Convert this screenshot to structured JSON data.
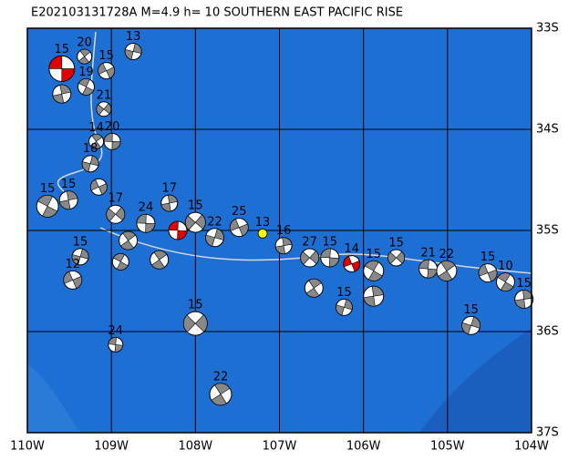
{
  "map": {
    "title": "E202103131728A M=4.9 h= 10 SOUTHERN EAST PACIFIC RISE",
    "xlim": [
      -110,
      -104
    ],
    "ylim": [
      -37,
      -33
    ],
    "xticks": [
      {
        "value": -110,
        "label": "110W"
      },
      {
        "value": -109,
        "label": "109W"
      },
      {
        "value": -108,
        "label": "108W"
      },
      {
        "value": -107,
        "label": "107W"
      },
      {
        "value": -106,
        "label": "106W"
      },
      {
        "value": -105,
        "label": "105W"
      },
      {
        "value": -104,
        "label": "104W"
      }
    ],
    "yticks": [
      {
        "value": -33,
        "label": "33S"
      },
      {
        "value": -34,
        "label": "34S"
      },
      {
        "value": -35,
        "label": "35S"
      },
      {
        "value": -36,
        "label": "36S"
      },
      {
        "value": -37,
        "label": "37S"
      }
    ],
    "events": [
      {
        "lon": -109.59,
        "lat": -33.4,
        "label": "15",
        "size": 14,
        "color": "#e00000"
      },
      {
        "lon": -109.32,
        "lat": -33.28,
        "label": "20",
        "size": 8,
        "color": "#888888"
      },
      {
        "lon": -108.74,
        "lat": -33.23,
        "label": "13",
        "size": 9,
        "color": "#888888"
      },
      {
        "lon": -109.06,
        "lat": -33.42,
        "label": "15",
        "size": 9,
        "color": "#888888"
      },
      {
        "lon": -109.3,
        "lat": -33.58,
        "label": "19",
        "size": 9,
        "color": "#888888"
      },
      {
        "lon": -109.59,
        "lat": -33.65,
        "label": null,
        "size": 10,
        "color": "#888888"
      },
      {
        "lon": -109.09,
        "lat": -33.8,
        "label": "21",
        "size": 8,
        "color": "#888888"
      },
      {
        "lon": -108.99,
        "lat": -34.12,
        "label": "20",
        "size": 9,
        "color": "#888888"
      },
      {
        "lon": -109.18,
        "lat": -34.12,
        "label": "14",
        "size": 8,
        "color": "#888888"
      },
      {
        "lon": -109.25,
        "lat": -34.34,
        "label": "18",
        "size": 9,
        "color": "#888888"
      },
      {
        "lon": -109.15,
        "lat": -34.57,
        "label": null,
        "size": 9,
        "color": "#888888"
      },
      {
        "lon": -109.76,
        "lat": -34.76,
        "label": "15",
        "size": 12,
        "color": "#888888"
      },
      {
        "lon": -109.51,
        "lat": -34.7,
        "label": "15",
        "size": 10,
        "color": "#888888"
      },
      {
        "lon": -108.95,
        "lat": -34.84,
        "label": "17",
        "size": 10,
        "color": "#888888"
      },
      {
        "lon": -108.59,
        "lat": -34.93,
        "label": "24",
        "size": 10,
        "color": "#888888"
      },
      {
        "lon": -108.8,
        "lat": -35.1,
        "label": null,
        "size": 10,
        "color": "#888888"
      },
      {
        "lon": -109.37,
        "lat": -35.26,
        "label": "15",
        "size": 9,
        "color": "#888888"
      },
      {
        "lon": -109.46,
        "lat": -35.49,
        "label": "12",
        "size": 10,
        "color": "#888888"
      },
      {
        "lon": -108.89,
        "lat": -35.31,
        "label": null,
        "size": 9,
        "color": "#888888"
      },
      {
        "lon": -108.31,
        "lat": -34.73,
        "label": "17",
        "size": 9,
        "color": "#888888"
      },
      {
        "lon": -108.0,
        "lat": -34.92,
        "label": "15",
        "size": 11,
        "color": "#888888"
      },
      {
        "lon": -108.21,
        "lat": -35.0,
        "label": null,
        "size": 10,
        "color": "#e00000"
      },
      {
        "lon": -108.43,
        "lat": -35.29,
        "label": null,
        "size": 10,
        "color": "#888888"
      },
      {
        "lon": -107.77,
        "lat": -35.07,
        "label": "22",
        "size": 10,
        "color": "#888888"
      },
      {
        "lon": -107.48,
        "lat": -34.97,
        "label": "25",
        "size": 10,
        "color": "#888888"
      },
      {
        "lon": -107.2,
        "lat": -35.03,
        "label": "13",
        "size": 5,
        "color": "#ffff00"
      },
      {
        "lon": -106.95,
        "lat": -35.15,
        "label": "16",
        "size": 9,
        "color": "#888888"
      },
      {
        "lon": -106.64,
        "lat": -35.27,
        "label": "27",
        "size": 10,
        "color": "#888888"
      },
      {
        "lon": -106.4,
        "lat": -35.27,
        "label": "15",
        "size": 10,
        "color": "#888888"
      },
      {
        "lon": -106.59,
        "lat": -35.57,
        "label": null,
        "size": 10,
        "color": "#888888"
      },
      {
        "lon": -106.23,
        "lat": -35.76,
        "label": "15",
        "size": 9,
        "color": "#888888"
      },
      {
        "lon": -106.14,
        "lat": -35.33,
        "label": "14",
        "size": 9,
        "color": "#e00000"
      },
      {
        "lon": -105.88,
        "lat": -35.4,
        "label": "15",
        "size": 11,
        "color": "#888888"
      },
      {
        "lon": -105.88,
        "lat": -35.65,
        "label": null,
        "size": 11,
        "color": "#888888"
      },
      {
        "lon": -105.61,
        "lat": -35.27,
        "label": "15",
        "size": 9,
        "color": "#888888"
      },
      {
        "lon": -105.23,
        "lat": -35.38,
        "label": "21",
        "size": 10,
        "color": "#888888"
      },
      {
        "lon": -105.01,
        "lat": -35.4,
        "label": "22",
        "size": 11,
        "color": "#888888"
      },
      {
        "lon": -104.72,
        "lat": -35.94,
        "label": "15",
        "size": 10,
        "color": "#888888"
      },
      {
        "lon": -104.52,
        "lat": -35.42,
        "label": "15",
        "size": 10,
        "color": "#888888"
      },
      {
        "lon": -104.31,
        "lat": -35.51,
        "label": "10",
        "size": 10,
        "color": "#888888"
      },
      {
        "lon": -104.09,
        "lat": -35.68,
        "label": "15",
        "size": 10,
        "color": "#888888"
      },
      {
        "lon": -108.0,
        "lat": -35.92,
        "label": "15",
        "size": 13,
        "color": "#888888"
      },
      {
        "lon": -108.95,
        "lat": -36.13,
        "label": "24",
        "size": 8,
        "color": "#888888"
      },
      {
        "lon": -107.7,
        "lat": -36.62,
        "label": "22",
        "size": 12,
        "color": "#888888"
      }
    ]
  }
}
